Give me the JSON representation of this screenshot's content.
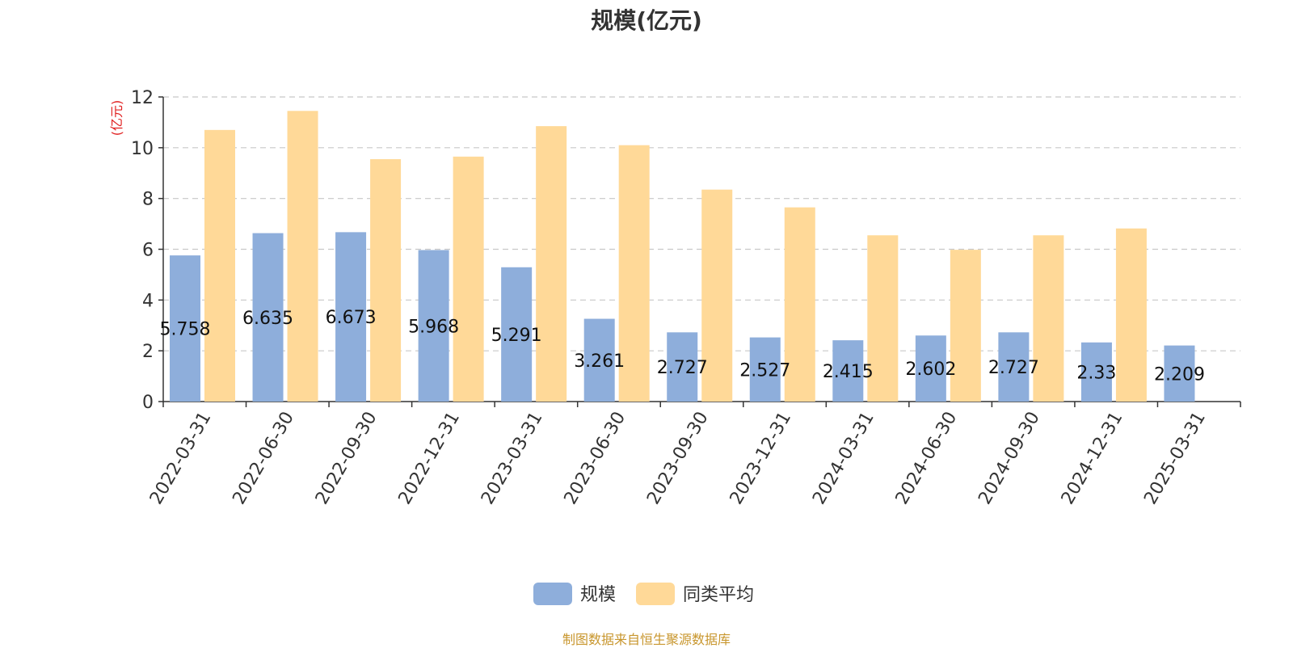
{
  "title": "规模(亿元)",
  "y_unit_label": "(亿元)",
  "footer": "制图数据来自恒生聚源数据库",
  "colors": {
    "scale": "#8eaedb",
    "avg": "#ffd998",
    "unit_label": "#e02020",
    "footer": "#c8962d"
  },
  "chart_data": {
    "type": "bar",
    "categories": [
      "2022-03-31",
      "2022-06-30",
      "2022-09-30",
      "2022-12-31",
      "2023-03-31",
      "2023-06-30",
      "2023-09-30",
      "2023-12-31",
      "2024-03-31",
      "2024-06-30",
      "2024-09-30",
      "2024-12-31",
      "2025-03-31"
    ],
    "series": [
      {
        "name": "规模",
        "values": [
          5.758,
          6.635,
          6.673,
          5.968,
          5.291,
          3.261,
          2.727,
          2.527,
          2.415,
          2.602,
          2.727,
          2.33,
          2.209
        ],
        "labels": [
          "5.758",
          "6.635",
          "6.673",
          "5.968",
          "5.291",
          "3.261",
          "2.727",
          "2.527",
          "2.415",
          "2.602",
          "2.727",
          "2.33",
          "2.209"
        ]
      },
      {
        "name": "同类平均",
        "values": [
          10.7,
          11.45,
          9.55,
          9.65,
          10.85,
          10.1,
          8.35,
          7.65,
          6.55,
          5.98,
          6.55,
          6.82,
          null
        ]
      }
    ],
    "ylim": [
      0,
      12
    ],
    "yticks": [
      0,
      2,
      4,
      6,
      8,
      10,
      12
    ],
    "grid": true,
    "legend_position": "bottom-center"
  }
}
